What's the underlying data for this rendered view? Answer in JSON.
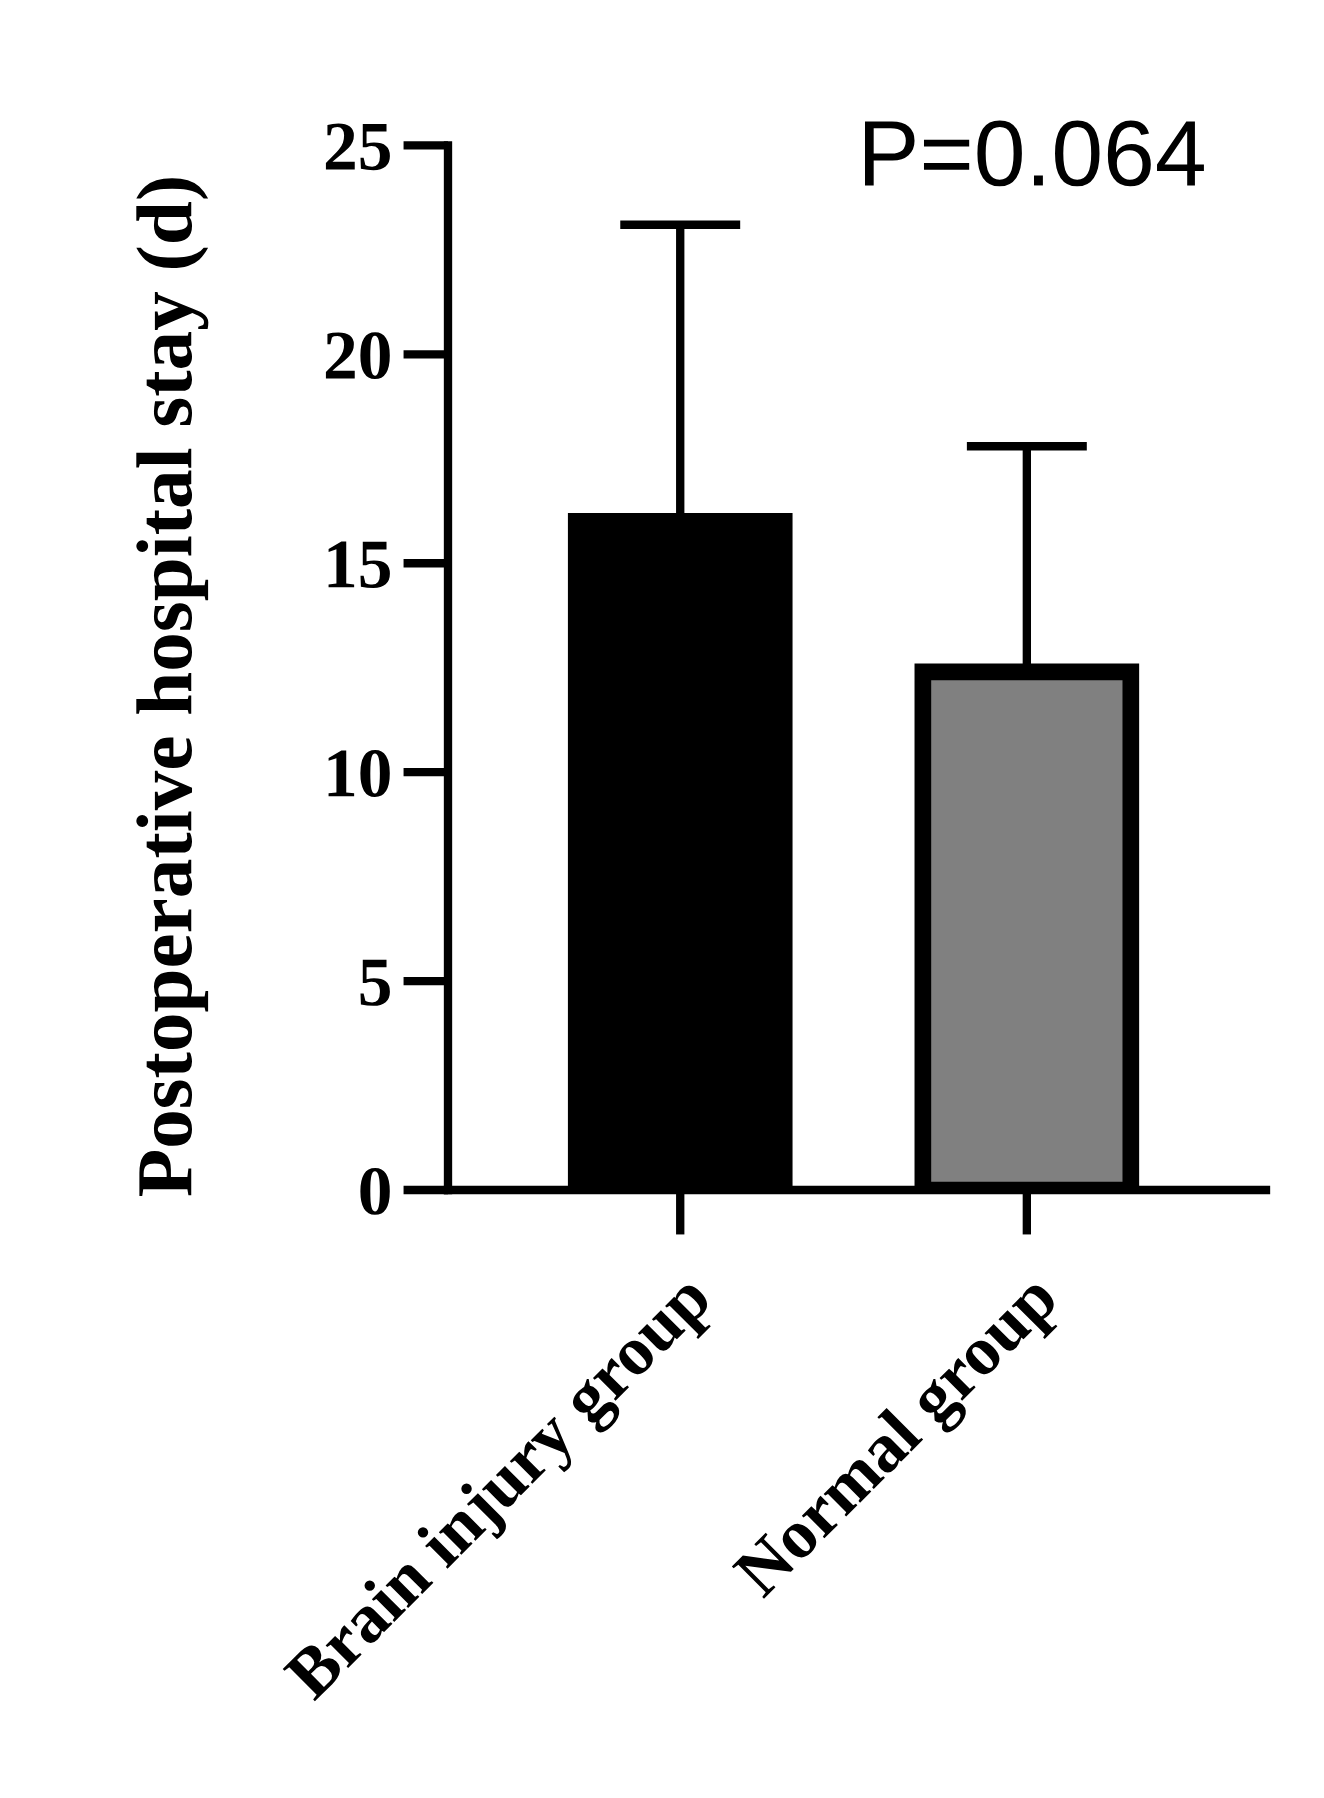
{
  "chart_data": {
    "type": "bar",
    "ylabel": "Postoperative hospital stay (d)",
    "categories": [
      "Brain injury group",
      "Normal group"
    ],
    "values": [
      16.0,
      12.4
    ],
    "colors": [
      "#000000",
      "#808080"
    ],
    "errors": [
      [
        16.0,
        23.1
      ],
      [
        12.4,
        17.8
      ]
    ],
    "ylim": [
      0,
      25
    ],
    "yticks": [
      0,
      5,
      10,
      15,
      20,
      25
    ],
    "annotations": [
      "P=0.064"
    ]
  }
}
